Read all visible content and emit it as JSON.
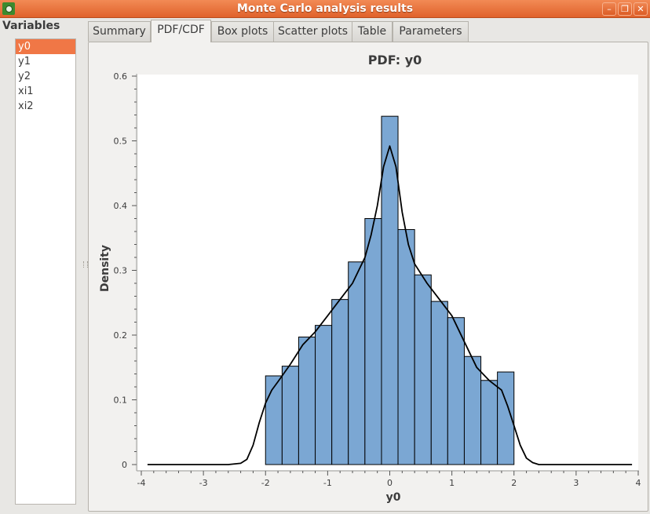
{
  "window": {
    "title": "Monte Carlo analysis results",
    "controls": [
      "–",
      "❐",
      "✕"
    ]
  },
  "sidebar": {
    "heading": "Variables",
    "items": [
      {
        "label": "y0",
        "selected": true
      },
      {
        "label": "y1",
        "selected": false
      },
      {
        "label": "y2",
        "selected": false
      },
      {
        "label": "xi1",
        "selected": false
      },
      {
        "label": "xi2",
        "selected": false
      }
    ]
  },
  "tabs": [
    {
      "label": "Summary",
      "active": false
    },
    {
      "label": "PDF/CDF",
      "active": true
    },
    {
      "label": "Box plots",
      "active": false
    },
    {
      "label": "Scatter plots",
      "active": false
    },
    {
      "label": "Table",
      "active": false
    },
    {
      "label": "Parameters",
      "active": false
    }
  ],
  "colors": {
    "accent": "#e8622a",
    "bar_fill": "#7ba7d3",
    "bar_edge": "#000000",
    "curve": "#000000"
  },
  "chart_data": {
    "type": "bar",
    "title": "PDF: y0",
    "xlabel": "y0",
    "ylabel": "Density",
    "xlim": [
      -4,
      4
    ],
    "ylim": [
      0,
      0.6
    ],
    "xticks": [
      "-4",
      "-3",
      "-2",
      "-1",
      "0",
      "1",
      "2",
      "3",
      "4"
    ],
    "yticks": [
      "0",
      "0.1",
      "0.2",
      "0.3",
      "0.4",
      "0.5",
      "0.6"
    ],
    "histogram": {
      "bin_edges": [
        -2.0,
        -1.733,
        -1.467,
        -1.2,
        -0.933,
        -0.667,
        -0.4,
        -0.133,
        0.133,
        0.4,
        0.667,
        0.933,
        1.2,
        1.467,
        1.733,
        2.0
      ],
      "values": [
        0.137,
        0.152,
        0.197,
        0.215,
        0.255,
        0.313,
        0.38,
        0.538,
        0.363,
        0.293,
        0.252,
        0.227,
        0.167,
        0.13,
        0.143
      ]
    },
    "density_curve": {
      "x": [
        -3.9,
        -3.0,
        -2.6,
        -2.4,
        -2.3,
        -2.2,
        -2.1,
        -2.0,
        -1.9,
        -1.8,
        -1.6,
        -1.4,
        -1.2,
        -1.0,
        -0.8,
        -0.6,
        -0.4,
        -0.3,
        -0.2,
        -0.1,
        0.0,
        0.1,
        0.2,
        0.3,
        0.4,
        0.6,
        0.8,
        1.0,
        1.2,
        1.4,
        1.6,
        1.8,
        1.9,
        2.0,
        2.1,
        2.2,
        2.3,
        2.4,
        2.6,
        3.0,
        3.9
      ],
      "y": [
        0.0,
        0.0,
        0.0,
        0.002,
        0.008,
        0.03,
        0.065,
        0.095,
        0.115,
        0.128,
        0.155,
        0.185,
        0.205,
        0.23,
        0.255,
        0.28,
        0.32,
        0.355,
        0.4,
        0.46,
        0.492,
        0.46,
        0.39,
        0.34,
        0.31,
        0.28,
        0.255,
        0.23,
        0.19,
        0.15,
        0.13,
        0.115,
        0.09,
        0.06,
        0.03,
        0.01,
        0.003,
        0.0,
        0.0,
        0.0,
        0.0
      ]
    },
    "grid": false
  }
}
